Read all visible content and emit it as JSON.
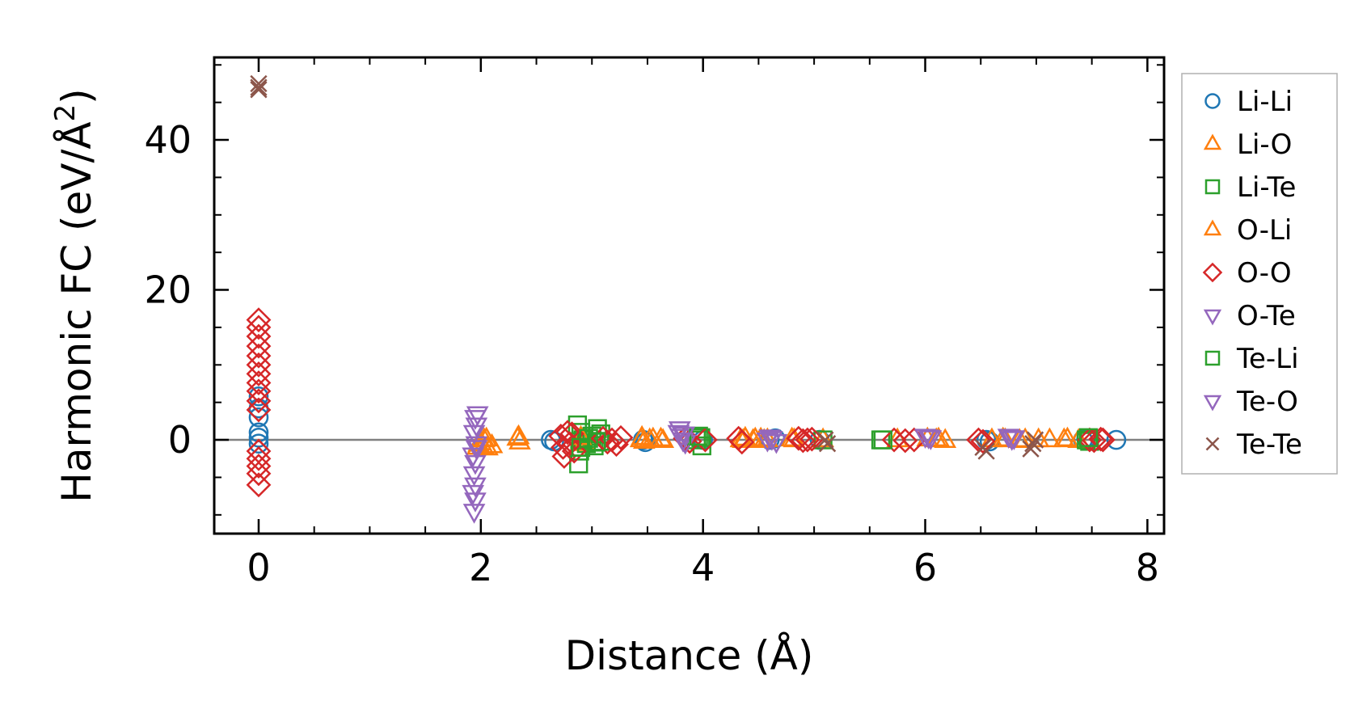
{
  "chart_data": {
    "type": "scatter",
    "title": "",
    "xlabel": "Distance (Å)",
    "ylabel_main": "Harmonic FC (eV/Å",
    "ylabel_sup": "2",
    "ylabel_close": ")",
    "xlim": [
      -0.4,
      8.15
    ],
    "ylim": [
      -12.5,
      51
    ],
    "xticks": [
      0,
      2,
      4,
      6,
      8
    ],
    "xtick_labels": [
      "0",
      "2",
      "4",
      "6",
      "8"
    ],
    "yticks": [
      0,
      20,
      40
    ],
    "ytick_labels": [
      "0",
      "20",
      "40"
    ],
    "zero_line": 0,
    "grid": false,
    "legend_position": "outside-right",
    "series": [
      {
        "name": "Li-Li",
        "marker": "circle",
        "color": "#1f77b4",
        "points": [
          [
            0,
            0.3
          ],
          [
            0,
            1
          ],
          [
            0,
            3
          ],
          [
            0,
            4.2
          ],
          [
            0,
            5.8
          ],
          [
            0,
            -0.5
          ],
          [
            2.63,
            0
          ],
          [
            2.66,
            -0.2
          ],
          [
            3.46,
            0
          ],
          [
            3.48,
            -0.3
          ],
          [
            4.0,
            0
          ],
          [
            4.6,
            0
          ],
          [
            4.65,
            0.2
          ],
          [
            5.05,
            0
          ],
          [
            6.55,
            0
          ],
          [
            6.58,
            -0.2
          ],
          [
            7.42,
            0
          ],
          [
            7.45,
            0.2
          ],
          [
            7.72,
            0
          ]
        ]
      },
      {
        "name": "Li-O",
        "marker": "triangle-up",
        "color": "#ff7f0e",
        "points": [
          [
            1.97,
            -1
          ],
          [
            2.0,
            -0.4
          ],
          [
            2.02,
            -0.9
          ],
          [
            2.05,
            0.1
          ],
          [
            2.1,
            -0.8
          ],
          [
            2.34,
            0.4
          ],
          [
            2.35,
            -0.3
          ],
          [
            2.91,
            0
          ],
          [
            2.93,
            -0.5
          ],
          [
            3.44,
            0
          ],
          [
            3.45,
            0.3
          ],
          [
            3.52,
            0
          ],
          [
            3.62,
            0.1
          ],
          [
            3.64,
            -0.1
          ],
          [
            4.34,
            0
          ],
          [
            4.38,
            0.2
          ],
          [
            4.45,
            -0.1
          ],
          [
            4.52,
            0.1
          ],
          [
            4.58,
            0
          ],
          [
            4.8,
            0.1
          ],
          [
            5.08,
            0
          ],
          [
            5.75,
            0
          ],
          [
            6.02,
            0.1
          ],
          [
            6.12,
            0.1
          ],
          [
            6.18,
            -0.1
          ],
          [
            6.6,
            0
          ],
          [
            6.72,
            0
          ],
          [
            6.85,
            -0.1
          ],
          [
            7.02,
            0
          ],
          [
            7.12,
            0
          ],
          [
            7.28,
            0.1
          ],
          [
            7.38,
            -0.1
          ]
        ]
      },
      {
        "name": "Li-Te",
        "marker": "square",
        "color": "#2ca02c",
        "points": [
          [
            2.87,
            2
          ],
          [
            2.88,
            -3.2
          ],
          [
            2.89,
            -1.5
          ],
          [
            2.9,
            1
          ],
          [
            2.92,
            0
          ],
          [
            2.95,
            -0.5
          ],
          [
            3.0,
            0.5
          ],
          [
            3.02,
            -0.8
          ],
          [
            3.05,
            1.5
          ],
          [
            3.07,
            -0.2
          ],
          [
            3.08,
            0.8
          ],
          [
            3.94,
            0
          ],
          [
            3.98,
            0.3
          ],
          [
            3.99,
            -0.8
          ],
          [
            5.08,
            0
          ],
          [
            5.6,
            0
          ],
          [
            7.45,
            0
          ],
          [
            7.48,
            -0.2
          ]
        ]
      },
      {
        "name": "O-Li",
        "marker": "triangle-up",
        "color": "#ff7f0e",
        "points": [
          [
            1.98,
            -0.6
          ],
          [
            2.03,
            0
          ],
          [
            2.06,
            -1.1
          ],
          [
            2.33,
            0.2
          ],
          [
            2.9,
            0.3
          ],
          [
            3.47,
            -0.2
          ],
          [
            3.55,
            0.1
          ],
          [
            4.36,
            -0.1
          ],
          [
            4.47,
            0.1
          ],
          [
            4.55,
            -0.1
          ],
          [
            4.82,
            0
          ],
          [
            6.1,
            0
          ],
          [
            6.7,
            0.1
          ],
          [
            6.9,
            0
          ],
          [
            7.25,
            0
          ]
        ]
      },
      {
        "name": "O-O",
        "marker": "diamond",
        "color": "#d62728",
        "points": [
          [
            0,
            16
          ],
          [
            0,
            15
          ],
          [
            0,
            13.8
          ],
          [
            0,
            12.5
          ],
          [
            0,
            11.2
          ],
          [
            0,
            10
          ],
          [
            0,
            8.8
          ],
          [
            0,
            7.6
          ],
          [
            0,
            6.5
          ],
          [
            0,
            5.2
          ],
          [
            0,
            4
          ],
          [
            0,
            -1.5
          ],
          [
            0,
            -2.5
          ],
          [
            0,
            -3.5
          ],
          [
            0,
            -4.5
          ],
          [
            0,
            -6
          ],
          [
            2.72,
            0.5
          ],
          [
            2.74,
            -1
          ],
          [
            2.75,
            -2.2
          ],
          [
            2.78,
            1
          ],
          [
            2.8,
            -0.5
          ],
          [
            2.82,
            0.8
          ],
          [
            2.84,
            -1.5
          ],
          [
            3.1,
            0.2
          ],
          [
            3.14,
            -0.3
          ],
          [
            3.18,
            0
          ],
          [
            3.22,
            -0.6
          ],
          [
            3.26,
            0.3
          ],
          [
            3.84,
            0.2
          ],
          [
            3.88,
            -0.2
          ],
          [
            4.02,
            0
          ],
          [
            4.32,
            0.2
          ],
          [
            4.35,
            -0.3
          ],
          [
            4.86,
            0.2
          ],
          [
            4.9,
            -0.1
          ],
          [
            4.94,
            0
          ],
          [
            4.98,
            0.1
          ],
          [
            5.72,
            0
          ],
          [
            5.82,
            -0.1
          ],
          [
            5.9,
            0
          ],
          [
            6.48,
            0
          ],
          [
            6.52,
            -0.2
          ],
          [
            7.48,
            0
          ],
          [
            7.52,
            -0.1
          ],
          [
            7.58,
            0.1
          ],
          [
            7.6,
            0
          ]
        ]
      },
      {
        "name": "O-Te",
        "marker": "triangle-down",
        "color": "#9467bd",
        "points": [
          [
            1.95,
            3
          ],
          [
            1.96,
            2
          ],
          [
            1.94,
            1
          ],
          [
            1.93,
            -2
          ],
          [
            1.95,
            -3
          ],
          [
            1.94,
            -4.5
          ],
          [
            1.93,
            -7
          ],
          [
            1.95,
            -8
          ],
          [
            1.94,
            -9.5
          ],
          [
            1.96,
            -0.5
          ],
          [
            3.78,
            1
          ],
          [
            3.8,
            0.5
          ],
          [
            3.82,
            0
          ],
          [
            3.84,
            -0.3
          ],
          [
            4.58,
            0
          ],
          [
            4.62,
            0.2
          ],
          [
            4.66,
            -0.2
          ],
          [
            6.0,
            0.5
          ],
          [
            6.05,
            0.3
          ],
          [
            6.75,
            0.5
          ],
          [
            6.8,
            0.3
          ]
        ]
      },
      {
        "name": "Te-Li",
        "marker": "square",
        "color": "#2ca02c",
        "points": [
          [
            2.9,
            -1
          ],
          [
            2.97,
            0.2
          ],
          [
            3.04,
            -0.3
          ],
          [
            3.96,
            0.5
          ],
          [
            5.62,
            0
          ],
          [
            7.47,
            0.3
          ]
        ]
      },
      {
        "name": "Te-O",
        "marker": "triangle-down",
        "color": "#9467bd",
        "points": [
          [
            1.97,
            3.5
          ],
          [
            1.96,
            -1
          ],
          [
            1.95,
            -6
          ],
          [
            3.79,
            1.5
          ],
          [
            3.83,
            0.8
          ],
          [
            4.6,
            0.4
          ],
          [
            6.03,
            0.4
          ],
          [
            6.78,
            0.2
          ]
        ]
      },
      {
        "name": "Te-Te",
        "marker": "x",
        "color": "#8c564b",
        "points": [
          [
            0,
            47.5
          ],
          [
            0,
            47
          ],
          [
            0,
            46.7
          ],
          [
            5.1,
            0
          ],
          [
            5.12,
            -0.5
          ],
          [
            6.52,
            -1
          ],
          [
            6.55,
            -1.5
          ],
          [
            6.97,
            -0.5
          ],
          [
            6.95,
            -1.2
          ],
          [
            6.99,
            0
          ]
        ]
      }
    ]
  }
}
